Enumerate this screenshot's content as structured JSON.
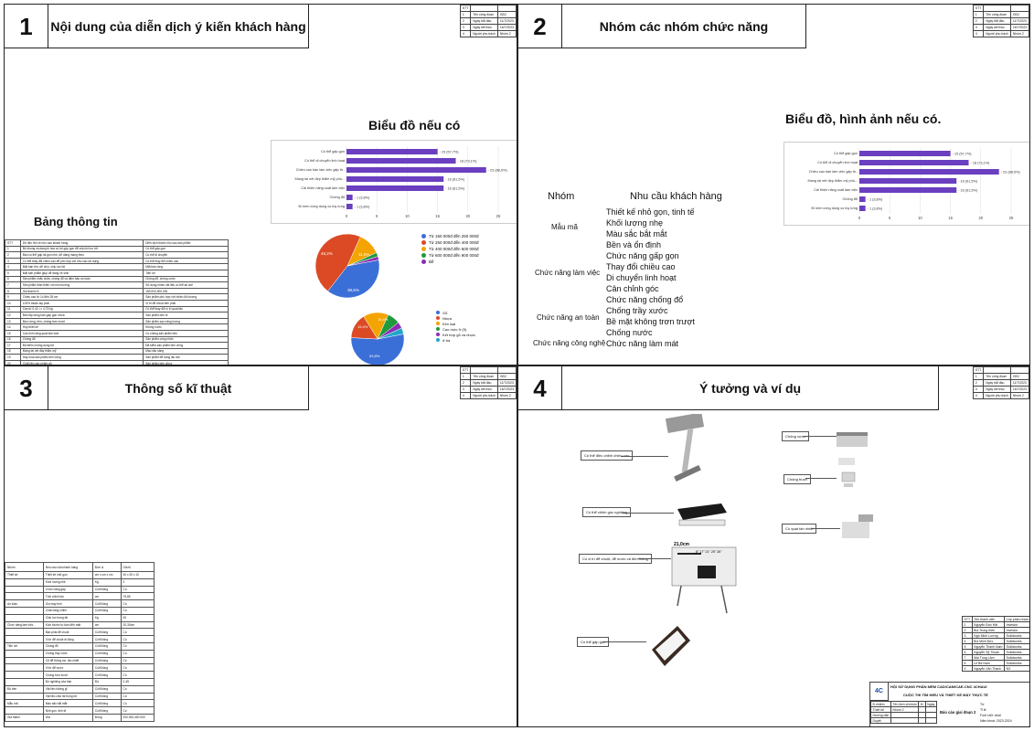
{
  "info_table": {
    "rows": [
      {
        "stt": "STT",
        "label": "",
        "value": ""
      },
      {
        "stt": "1",
        "label": "Tên công đoạn",
        "value": "GĐ2"
      },
      {
        "stt": "2",
        "label": "Ngày bắt đầu",
        "value": "11/7/2023"
      },
      {
        "stt": "3",
        "label": "Ngày kết thúc",
        "value": "16/7/2023"
      },
      {
        "stt": "4",
        "label": "Người phụ trách",
        "value": "Nhóm 2"
      }
    ]
  },
  "q1": {
    "number": "1",
    "title": "Nội dung của diễn dịch ý kiến khách hàng",
    "chart_heading": "Biểu đồ nếu có",
    "table_heading": "Bảng thông tin",
    "table_header": [
      "STT",
      "Dữ liệu thô về nhu cầu khách hàng",
      "Diễn dịch thành nhu cầu sản phẩm"
    ],
    "table_rows": [
      [
        "1",
        "Bộ khung và dạng bị hóa có bố góp gọn để xếp khi lưu trữ",
        "Có thể gấp gọn"
      ],
      [
        "2",
        "Bàn có thể gấp lại gọn nhẹ, dễ dàng mang theo",
        "Có thể di chuyển"
      ],
      [
        "3",
        "Có thể thay đổi chiều cao để phù hợp với nhu cầu sử dụng",
        "Có thể thay đổi chiều cao"
      ],
      [
        "4",
        "Mặt bàn êm, dễ chịu, chịu lực tốt",
        "Mặt bàn rộng"
      ],
      [
        "5",
        "Mặt sản phẩm giúp dễ dàng vệ sinh",
        "Tiện lợi"
      ],
      [
        "6",
        "Sản phẩm chắc chắn, chống đổ và đảm bảo an toàn",
        "Chống đổ, chống xước"
      ],
      [
        "7",
        "Sản phẩm thân thiện với môi trường",
        "Sử dụng nhiều vật liệu có thể tái chế"
      ],
      [
        "8",
        "Giá thành rẻ",
        "150.000-900.000"
      ],
      [
        "9",
        "Chiều cao từ 14 đến 28 cm",
        "Sản phẩm phù hợp với nhiều đối tượng"
      ],
      [
        "10",
        "100% thuận tay phải",
        "Vị trí để chuột bên phải"
      ],
      [
        "11",
        "Cần từ 0.42 => 4.75 kg",
        "Có thể thay đổi vị trí quạt tản"
      ],
      [
        "12",
        "Bàn lắp dùng bàn gấp gọn nhưa",
        "Sản phẩm bền bỉ"
      ],
      [
        "13",
        "Bàn vừng, bền, chống trơn trượt",
        "Sản phẩm sạc năng lượng"
      ],
      [
        "14",
        "Hộp thiết kế",
        "Không xước"
      ],
      [
        "15",
        "Các tính năng quạt làm mát",
        "Có chống sản phẩm bền"
      ],
      [
        "16",
        "Chống đổ",
        "Sản phẩm công nhận"
      ],
      [
        "17",
        "Đã kiểm chứng dụng tốt",
        "Đã kiểm sản phẩm bền vững"
      ],
      [
        "18",
        "Mang tai nét đậy thẩm mỹ",
        "Màu sắc sáng"
      ],
      [
        "19",
        "Hay mua sản phẩm bền vững",
        "Sản phẩm để dùng lâu dài"
      ],
      [
        "20",
        "Chất liệu sản phẩm gỗ",
        "Sản phẩm bền vững"
      ]
    ]
  },
  "bar_labels": {
    "r1": "Có thể gấp gọn",
    "r2": "Có thể di chuyển linh hoạt",
    "r3": "Chiều cao bàn làm việc gấp th..",
    "r4": "Mang tai nét đẹp thẩm mỹ phù...",
    "r5": "Cải thiện năng suất làm việc",
    "r6": "Chống đổ",
    "r7": "Đi kèm cùng dụng cụ tùy lựng",
    "v1": "15 (57,7%)",
    "v2": "18 (73,1%)",
    "v3": "23 (88,5%)",
    "v4": "16 (61,5%)",
    "v5": "16 (61,5%)",
    "v6": "1 (3,8%)",
    "v7": "1 (3,8%)"
  },
  "chart_data": [
    {
      "type": "bar",
      "orientation": "horizontal",
      "categories": [
        "Có thể gấp gọn",
        "Có thể di chuyển linh hoạt",
        "Chiều cao bàn làm việc gấp th..",
        "Mang tai nét đẹp thẩm mỹ phù...",
        "Cải thiện năng suất làm việc",
        "Chống đổ",
        "Đi kèm cùng dụng cụ tùy lựng"
      ],
      "values": [
        15,
        18,
        23,
        16,
        16,
        1,
        1
      ],
      "value_labels": [
        "15 (57,7%)",
        "18 (73,1%)",
        "23 (88,5%)",
        "16 (61,5%)",
        "16 (61,5%)",
        "1 (3,8%)",
        "1 (3,8%)"
      ],
      "xlim": [
        0,
        25
      ],
      "xticks": [
        "0",
        "5",
        "10",
        "15",
        "20",
        "25"
      ],
      "color": "#6a3fc0"
    },
    {
      "type": "pie",
      "labels": [
        "Từ 150 000đ đến 250 000đ",
        "Từ 250 000đ đến 400 000đ",
        "Từ 400 000đ đến 600 000đ",
        "Từ 600 000đ đến 900 000đ",
        "Bề"
      ],
      "values": [
        38.5,
        46.2,
        11.5,
        2.0,
        1.8
      ],
      "slice_labels": [
        "38,5%",
        "46,2%",
        "11,5%",
        "",
        ""
      ],
      "colors": [
        "#3b6fd8",
        "#db4a24",
        "#f4a400",
        "#1f9a3c",
        "#8e2cb4"
      ]
    },
    {
      "type": "pie",
      "labels": [
        "Gỗ",
        "Nhựa",
        "Kim loại",
        "Cao mức ở (5)",
        "Kết hợp gỗ và nhựa",
        "ở ba"
      ],
      "values": [
        53.8,
        15.4,
        15.4,
        7.7,
        3.9,
        3.8
      ],
      "slice_labels": [
        "53,8%",
        "15,4%",
        "15,4%",
        "",
        "",
        ""
      ],
      "colors": [
        "#3b6fd8",
        "#db4a24",
        "#f4a400",
        "#1f9a3c",
        "#8e2cb4",
        "#21a6c9"
      ]
    }
  ],
  "pie1_labels": {
    "a": "38,5%",
    "b": "46,2%",
    "c": "11,5%"
  },
  "pie1_legend": [
    "Từ 150 000đ đến 250 000đ",
    "Từ 250 000đ đến 400 000đ",
    "Từ 400 000đ đến 600 000đ",
    "Từ 600 000đ đến 900 000đ",
    "Bề"
  ],
  "pie2_labels": {
    "a": "53,8%",
    "b": "15,4%",
    "c": "15,4%"
  },
  "pie2_legend": [
    "Gỗ",
    "Nhựa",
    "Kim loại",
    "Cao mức ở (5)",
    "Kết hợp gỗ và nhựa",
    "ở ba"
  ],
  "colors": {
    "bar": "#6a3fc0",
    "blue": "#3b6fd8",
    "red": "#db4a24",
    "orange": "#f4a400",
    "green": "#1f9a3c",
    "purple": "#8e2cb4",
    "teal": "#21a6c9"
  },
  "q2": {
    "number": "2",
    "title": "Nhóm các nhóm chức năng",
    "chart_heading": "Biểu đồ, hình  ảnh nếu có.",
    "col_group": "Nhóm",
    "col_needs": "Nhu cầu khách hàng",
    "groups": [
      "Mẫu mã",
      "Chức năng làm việc",
      "Chức năng an toàn",
      "Chức năng công nghệ"
    ],
    "needs": [
      "Thiết kế nhỏ gọn, tinh tế",
      "Khối lượng nhẹ",
      "Màu sắc bắt mắt",
      "Bền và ổn định",
      "Chức năng gấp gọn",
      "Thay đổi chiều cao",
      "Di chuyển linh hoạt",
      "Cân chỉnh góc",
      "Chức năng chống đổ",
      "Chống trầy xước",
      "Bề mặt không trơn trượt",
      "Chống nước",
      "Chức năng làm mát"
    ]
  },
  "q3": {
    "number": "3",
    "title": "Thông số kĩ thuật",
    "table_header": [
      "Nhóm",
      "Nhu cầu của khách hàng",
      "Đơn vị",
      "Giá trị"
    ],
    "rows": [
      [
        "Thiết kế",
        "Thiết kế nhỏ gọn",
        "cm x cm x cm",
        "40 x 30 x 10"
      ],
      [
        "",
        "Khối lượng nhẹ",
        "Kg",
        "2"
      ],
      [
        "",
        "Chức năng gấp",
        "Có/Không",
        "Có"
      ],
      [
        "",
        "Tính chỉnh lần",
        "cm",
        "75-85"
      ],
      [
        "An toàn",
        "Gọi máy tính",
        "Có/Không",
        "Có"
      ],
      [
        "",
        "Chân tăng chỉnh",
        "Có/Không",
        "Có"
      ],
      [
        "",
        "Chịu lực trọng tải",
        "Kg",
        "40"
      ],
      [
        "Chức năng làm việc",
        "Kích thước tự bàn đến mặt",
        "cm",
        "20-30cm"
      ],
      [
        "",
        "Bàn phải để chuột",
        "Có/Không",
        "Có"
      ],
      [
        "",
        "Vị trí để chuột di động",
        "Có/Không",
        "Có"
      ],
      [
        "Tiện ích",
        "Chống đổ",
        "Có/Không",
        "Có"
      ],
      [
        "",
        "Chống trầy xước",
        "Có/Không",
        "Có"
      ],
      [
        "",
        "Cổ để thông tục, tản nhiệt",
        "Có/Không",
        "Có"
      ],
      [
        "",
        "Vị trí để nước",
        "Có/Không",
        "Có"
      ],
      [
        "",
        "Chống trơn trượt",
        "Có/Không",
        "Có"
      ],
      [
        "",
        "Độ nghiêng của bàn",
        "Độ",
        "0-45"
      ],
      [
        "Độ bền",
        "Vật liệu không gỉ",
        "Có/Không",
        "Có"
      ],
      [
        "",
        "Vật liệu chịu tải trọng tốt",
        "Có/Không",
        "Có"
      ],
      [
        "Mẫu mã",
        "Màu sắc bắt mắt",
        "Có/Không",
        "Có"
      ],
      [
        "",
        "Nhỏ gọn, tinh tế",
        "Có/Không",
        "Có"
      ],
      [
        "Giá thành",
        "Giá",
        "Đồng",
        "200.000-400.000"
      ]
    ]
  },
  "q4": {
    "number": "4",
    "title": "Ý tưởng và ví dụ",
    "callouts": [
      "Có thể gấp gọn",
      "Có thể chỉnh góc nghiêng",
      "Có thể điều chỉnh chiều cao",
      "Có vị trí để chuột, để nước và đèn thông",
      "Có thể gấp gọn",
      "Chống xước",
      "Chống trượt",
      "Có quạt tản nhiệt"
    ],
    "ruler_text": "21,0cm",
    "ruler_nums": "8\" 17\" 21\" 25\" 26\"",
    "members_header": [
      "STT",
      "Tên thành viên",
      "Lớp phân nhóm"
    ],
    "members": [
      [
        "1",
        "Nguyễn Đức Hải",
        "Investor"
      ],
      [
        "2",
        "Bùi Trung Kiên",
        "Investor"
      ],
      [
        "3",
        "Ngô Minh Lương",
        "Solidworks"
      ],
      [
        "4",
        "Bùi Minh Đức",
        "Solidworks"
      ],
      [
        "5",
        "Nguyễn Thành Nam",
        "Solidworks"
      ],
      [
        "6",
        "Nguyễn Sỹ Thuận",
        "Solidworks"
      ],
      [
        "7",
        "Mai Tùng Lâm",
        "Solidworks"
      ],
      [
        "8",
        "Lê Bá Nam",
        "Solidworks"
      ],
      [
        "9",
        "Nguyễn Văn Thanh",
        "NX"
      ]
    ],
    "title_block": {
      "org": "HỘI SỬ DỤNG PHẦN MỀM CAD/CAM/CAE-CNC 4CHAUI",
      "contest": "CUỘC THI TÌM HIỂU VÀ THIẾT KẾ MÁY THỰC TẾ",
      "report": "Báo cáo giai đoạn 2",
      "r1": [
        "Đ.nhiệm",
        "Tên đơn vị/nhóm",
        "Kí",
        "Ngày"
      ],
      "r2": [
        "Thiết kế",
        "Nhóm 2",
        "",
        ""
      ],
      "r3": [
        "Hướng dẫn",
        "",
        "",
        ""
      ],
      "r4": [
        "Duyệt",
        "",
        "",
        ""
      ],
      "side": [
        "Tờ",
        "Tỉ lệ",
        "Font chữ: Arial",
        "Năm khoá: 2023-2024"
      ],
      "logo": "4C"
    }
  }
}
